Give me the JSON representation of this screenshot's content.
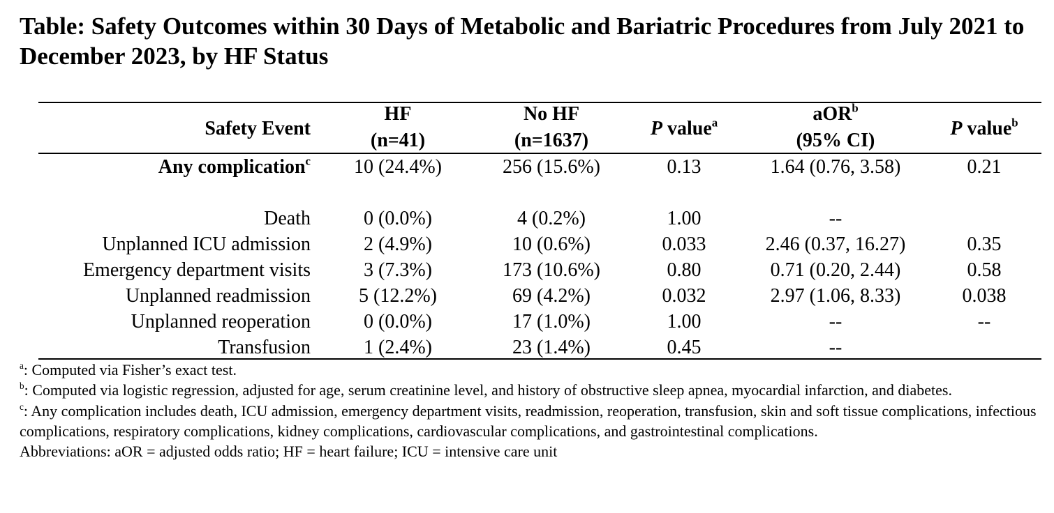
{
  "title": "Table: Safety Outcomes within 30 Days of Metabolic and Bariatric Procedures from July 2021 to December 2023, by HF Status",
  "table": {
    "columns": [
      [
        [
          {
            "text": "Safety Event"
          }
        ]
      ],
      [
        [
          {
            "text": "HF"
          }
        ],
        [
          {
            "text": "(n=41)"
          }
        ]
      ],
      [
        [
          {
            "text": "No HF"
          }
        ],
        [
          {
            "text": "(n=1637)"
          }
        ]
      ],
      [
        [
          {
            "text": "P",
            "style": "italic"
          },
          {
            "text": " value"
          },
          {
            "text": "a",
            "style": "sup"
          }
        ]
      ],
      [
        [
          {
            "text": "aOR"
          },
          {
            "text": "b",
            "style": "sup"
          }
        ],
        [
          {
            "text": "(95% CI)"
          }
        ]
      ],
      [
        [
          {
            "text": "P",
            "style": "italic"
          },
          {
            "text": " value"
          },
          {
            "text": "b",
            "style": "sup"
          }
        ]
      ]
    ],
    "rows": [
      {
        "label": [
          {
            "text": "Any complication"
          },
          {
            "text": "c",
            "style": "sup"
          }
        ],
        "bold": true,
        "cells": [
          "10 (24.4%)",
          "256 (15.6%)",
          "0.13",
          "1.64 (0.76, 3.58)",
          "0.21"
        ]
      },
      {
        "label": [
          {
            "text": "Death"
          }
        ],
        "cells": [
          "0 (0.0%)",
          "4 (0.2%)",
          "1.00",
          "--",
          null
        ]
      },
      {
        "label": [
          {
            "text": "Unplanned ICU admission"
          }
        ],
        "cells": [
          "2 (4.9%)",
          "10 (0.6%)",
          "0.033",
          "2.46 (0.37, 16.27)",
          "0.35"
        ]
      },
      {
        "label": [
          {
            "text": "Emergency department visits"
          }
        ],
        "cells": [
          "3 (7.3%)",
          "173 (10.6%)",
          "0.80",
          "0.71 (0.20, 2.44)",
          "0.58"
        ]
      },
      {
        "label": [
          {
            "text": "Unplanned readmission"
          }
        ],
        "cells": [
          "5 (12.2%)",
          "69 (4.2%)",
          "0.032",
          "2.97 (1.06, 8.33)",
          "0.038"
        ]
      },
      {
        "label": [
          {
            "text": "Unplanned reoperation"
          }
        ],
        "cells": [
          "0 (0.0%)",
          "17 (1.0%)",
          "1.00",
          "--",
          "--"
        ]
      },
      {
        "label": [
          {
            "text": "Transfusion"
          }
        ],
        "cells": [
          "1 (2.4%)",
          "23 (1.4%)",
          "0.45",
          "--",
          null
        ]
      }
    ]
  },
  "footnotes": [
    [
      {
        "text": "a",
        "style": "sup"
      },
      {
        "text": ": Computed via Fisher’s exact test."
      }
    ],
    [
      {
        "text": "b",
        "style": "sup"
      },
      {
        "text": ": Computed via logistic regression, adjusted for age, serum creatinine level, and history of obstructive sleep apnea, myocardial infarction, and diabetes."
      }
    ],
    [
      {
        "text": "c",
        "style": "sup"
      },
      {
        "text": ": Any complication includes death, ICU admission, emergency department visits, readmission, reoperation, transfusion, skin and soft tissue complications, infectious complications, respiratory complications, kidney complications, cardiovascular complications, and gastrointestinal complications."
      }
    ],
    [
      {
        "text": "Abbreviations: aOR = adjusted odds ratio; HF = heart failure; ICU = intensive care unit"
      }
    ]
  ]
}
